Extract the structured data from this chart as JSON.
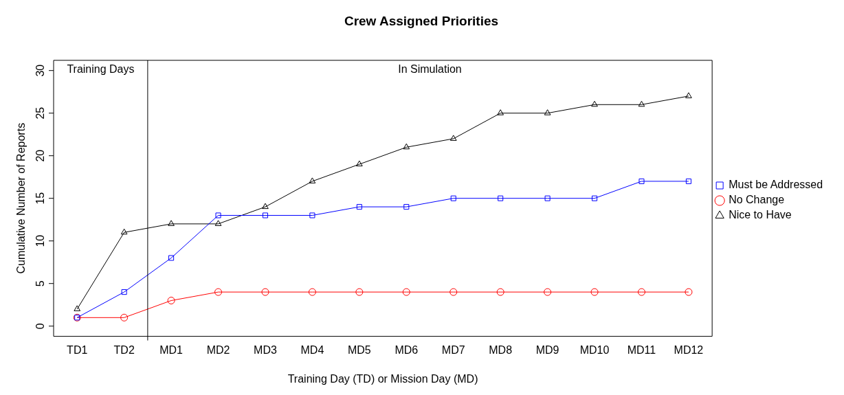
{
  "chart_data": {
    "type": "line",
    "title": "Crew Assigned Priorities",
    "xlabel": "Training Day (TD) or Mission Day (MD)",
    "ylabel": "Cumulative Number of Reports",
    "categories": [
      "TD1",
      "TD2",
      "MD1",
      "MD2",
      "MD3",
      "MD4",
      "MD5",
      "MD6",
      "MD7",
      "MD8",
      "MD9",
      "MD10",
      "MD11",
      "MD12"
    ],
    "series": [
      {
        "name": "Must be Addressed",
        "color": "#0000ff",
        "marker": "square",
        "values": [
          1,
          4,
          8,
          13,
          13,
          13,
          14,
          14,
          15,
          15,
          15,
          15,
          17,
          17
        ]
      },
      {
        "name": "No Change",
        "color": "#ff0000",
        "marker": "circle",
        "values": [
          1,
          1,
          3,
          4,
          4,
          4,
          4,
          4,
          4,
          4,
          4,
          4,
          4,
          4
        ]
      },
      {
        "name": "Nice to Have",
        "color": "#000000",
        "marker": "triangle",
        "values": [
          2,
          11,
          12,
          12,
          14,
          17,
          19,
          21,
          22,
          25,
          25,
          26,
          26,
          27
        ]
      }
    ],
    "ylim": [
      -1.2,
      31.2
    ],
    "yticks": [
      0,
      5,
      10,
      15,
      20,
      25,
      30
    ],
    "grid": false,
    "legend": "right",
    "line_style": "solid",
    "annotations": [
      "Training Days",
      "In Simulation"
    ]
  }
}
